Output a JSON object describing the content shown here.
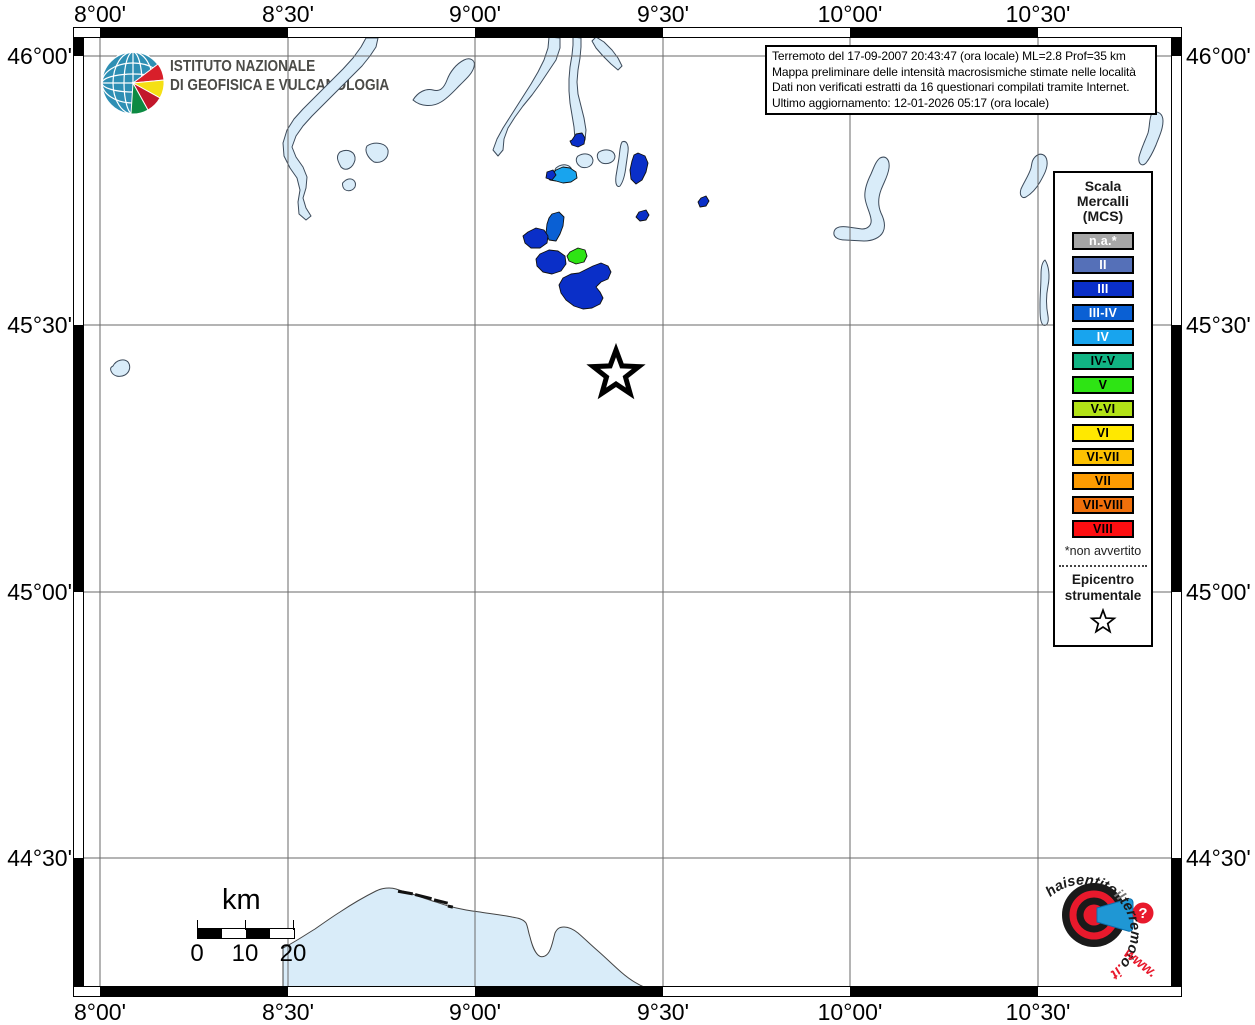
{
  "axes": {
    "lon_labels": [
      "8°00'",
      "8°30'",
      "9°00'",
      "9°30'",
      "10°00'",
      "10°30'"
    ],
    "lat_labels": [
      "46°00'",
      "45°30'",
      "45°00'",
      "44°30'"
    ]
  },
  "header_logo": {
    "org_line1": "ISTITUTO NAZIONALE",
    "org_line2": "DI GEOFISICA E VULCANOLOGIA"
  },
  "title_box": {
    "line1": "Terremoto del 17-09-2007 20:43:47 (ora locale) ML=2.8 Prof=35 km",
    "line2": "Mappa preliminare delle intensità macrosismiche stimate nelle località",
    "line3": "Dati non verificati estratti da 16 questionari compilati tramite Internet.",
    "line4": "Ultimo aggiornamento: 12-01-2026 05:17 (ora locale)"
  },
  "legend": {
    "title_line1": "Scala",
    "title_line2": "Mercalli",
    "title_line3": "(MCS)",
    "items": [
      {
        "label": "n.a.*",
        "color": "#a6a6a6",
        "text_color": "#ffffff"
      },
      {
        "label": "II",
        "color": "#5570b8",
        "text_color": "#ffffff"
      },
      {
        "label": "III",
        "color": "#0a2fc8",
        "text_color": "#ffffff"
      },
      {
        "label": "III-IV",
        "color": "#0a60d4",
        "text_color": "#ffffff"
      },
      {
        "label": "IV",
        "color": "#18a4ee",
        "text_color": "#ffffff"
      },
      {
        "label": "IV-V",
        "color": "#11b484",
        "text_color": "#000000"
      },
      {
        "label": "V",
        "color": "#2ee414",
        "text_color": "#000000"
      },
      {
        "label": "V-VI",
        "color": "#b2e217",
        "text_color": "#000000"
      },
      {
        "label": "VI",
        "color": "#ffe800",
        "text_color": "#000000"
      },
      {
        "label": "VI-VII",
        "color": "#fdc101",
        "text_color": "#000000"
      },
      {
        "label": "VII",
        "color": "#fd9b01",
        "text_color": "#000000"
      },
      {
        "label": "VII-VIII",
        "color": "#f0700b",
        "text_color": "#000000"
      },
      {
        "label": "VIII",
        "color": "#fd0e11",
        "text_color": "#000000"
      }
    ],
    "footnote": "*non avvertito",
    "epicenter_title_line1": "Epicentro",
    "epicenter_title_line2": "strumentale"
  },
  "scale_bar": {
    "unit": "km",
    "tick0": "0",
    "tick1": "10",
    "tick2": "20"
  },
  "watermark_logo": {
    "arc_text_left": "haisentito",
    "arc_text_mid": "il",
    "arc_text_main": "terremoto",
    "arc_text_tld": ".it",
    "bottom_text": "www.",
    "bubble_char": "?"
  },
  "map": {
    "epicenter_marker": "star",
    "intensity_classes_on_map": [
      "III",
      "III-IV",
      "IV",
      "V"
    ]
  },
  "colors": {
    "water": "#d9ecf9",
    "water_outline": "#3c4a5a",
    "grid": "#6a6a6a",
    "frame": "#000000"
  }
}
